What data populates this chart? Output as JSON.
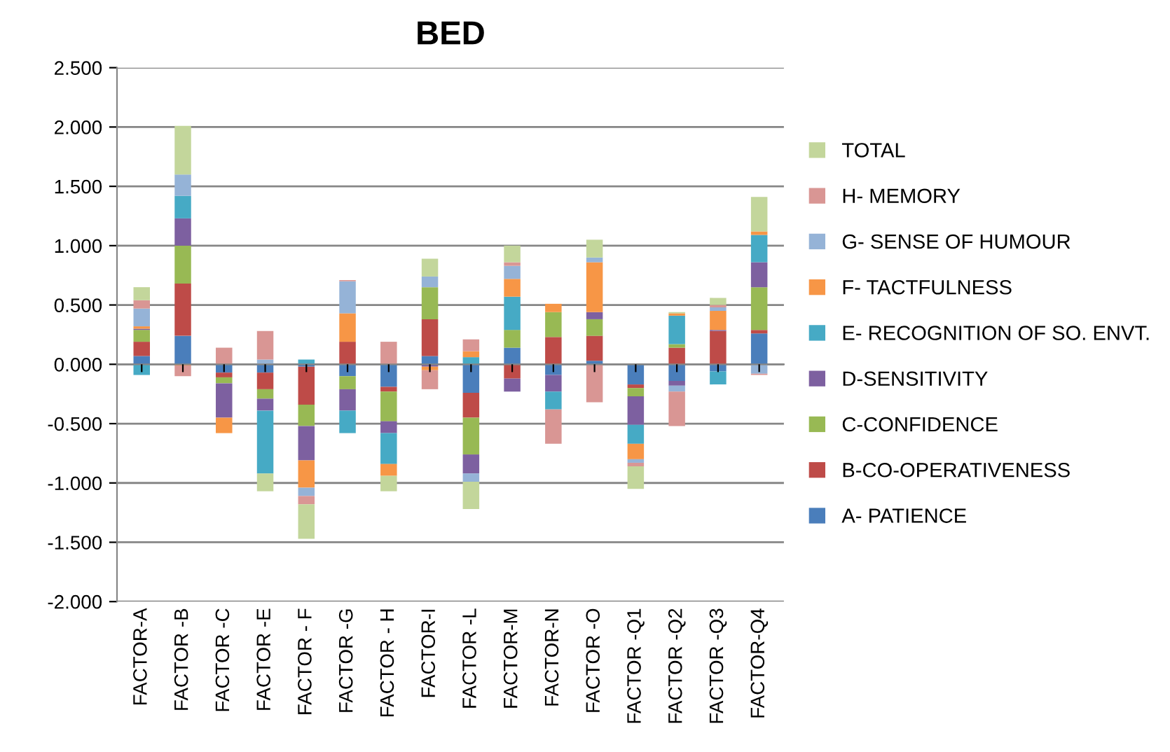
{
  "chart_data": {
    "type": "bar",
    "title": "BED",
    "stacked": true,
    "grid": "y",
    "legend": "right",
    "categories": [
      "FACTOR-A",
      "FACTOR -B",
      "FACTOR -C",
      "FACTOR -E",
      "FACTOR - F",
      "FACTOR -G",
      "FACTOR - H",
      "FACTOR-I",
      "FACTOR -L",
      "FACTOR-M",
      "FACTOR-N",
      "FACTOR -O",
      "FACTOR -Q1",
      "FACTOR -Q2",
      "FACTOR -Q3",
      "FACTOR-Q4"
    ],
    "ylim": [
      -2.0,
      2.5
    ],
    "yticks": [
      {
        "value": -2.0,
        "label": "-2.000"
      },
      {
        "value": -1.5,
        "label": "-1.500"
      },
      {
        "value": -1.0,
        "label": "-1.000"
      },
      {
        "value": -0.5,
        "label": "-0.500"
      },
      {
        "value": 0.0,
        "label": "0.000"
      },
      {
        "value": 0.5,
        "label": "0.500"
      },
      {
        "value": 1.0,
        "label": "1.000"
      },
      {
        "value": 1.5,
        "label": "1.500"
      },
      {
        "value": 2.0,
        "label": "2.000"
      },
      {
        "value": 2.5,
        "label": "2.500"
      }
    ],
    "series": [
      {
        "name": "A- PATIENCE",
        "color": "#4a7ebb",
        "values": [
          0.07,
          0.24,
          -0.07,
          -0.07,
          -0.02,
          -0.1,
          -0.19,
          0.07,
          -0.24,
          0.14,
          -0.09,
          0.03,
          -0.17,
          -0.14,
          -0.06,
          0.26
        ]
      },
      {
        "name": "B-CO-OPERATIVENESS",
        "color": "#be4b48",
        "values": [
          0.12,
          0.44,
          -0.04,
          -0.14,
          -0.32,
          0.19,
          -0.04,
          0.31,
          -0.21,
          -0.12,
          0.23,
          0.21,
          -0.03,
          0.14,
          0.28,
          0.03
        ]
      },
      {
        "name": "C-CONFIDENCE",
        "color": "#98b954",
        "values": [
          0.1,
          0.32,
          -0.05,
          -0.08,
          -0.18,
          -0.11,
          -0.25,
          0.27,
          -0.31,
          0.15,
          0.21,
          0.14,
          -0.07,
          0.03,
          null,
          0.36
        ]
      },
      {
        "name": "D-SENSITIVITY",
        "color": "#7d60a0",
        "values": [
          0.01,
          0.23,
          -0.29,
          -0.1,
          -0.29,
          -0.18,
          -0.1,
          -0.02,
          -0.16,
          -0.11,
          -0.14,
          0.06,
          -0.24,
          -0.04,
          0.01,
          0.21
        ]
      },
      {
        "name": "E- RECOGNITION OF SO. ENVT.",
        "color": "#46aac5",
        "values": [
          -0.09,
          0.19,
          null,
          -0.53,
          0.04,
          -0.19,
          -0.26,
          null,
          0.06,
          0.28,
          -0.15,
          null,
          -0.16,
          0.24,
          -0.11,
          0.23
        ]
      },
      {
        "name": "F- TACTFULNESS",
        "color": "#f79646",
        "values": [
          0.02,
          -0.01,
          -0.13,
          null,
          -0.23,
          0.24,
          -0.1,
          -0.03,
          0.05,
          0.15,
          0.07,
          0.42,
          -0.13,
          0.02,
          0.16,
          0.03
        ]
      },
      {
        "name": "G- SENSE OF HUMOUR",
        "color": "#95b3d7",
        "values": [
          0.15,
          0.18,
          null,
          0.04,
          -0.07,
          0.27,
          null,
          0.09,
          -0.07,
          0.11,
          null,
          0.04,
          -0.03,
          -0.05,
          0.03,
          -0.08
        ]
      },
      {
        "name": "H- MEMORY",
        "color": "#d99694",
        "values": [
          0.07,
          -0.09,
          0.14,
          0.24,
          -0.07,
          0.01,
          0.19,
          -0.16,
          0.1,
          0.03,
          -0.29,
          -0.32,
          -0.03,
          -0.29,
          0.02,
          -0.01
        ]
      },
      {
        "name": "TOTAL",
        "color": "#c3d69b",
        "values": [
          0.11,
          0.41,
          null,
          -0.15,
          -0.29,
          null,
          -0.13,
          0.15,
          -0.23,
          0.14,
          null,
          0.15,
          -0.19,
          0.01,
          0.06,
          0.29
        ]
      }
    ]
  }
}
